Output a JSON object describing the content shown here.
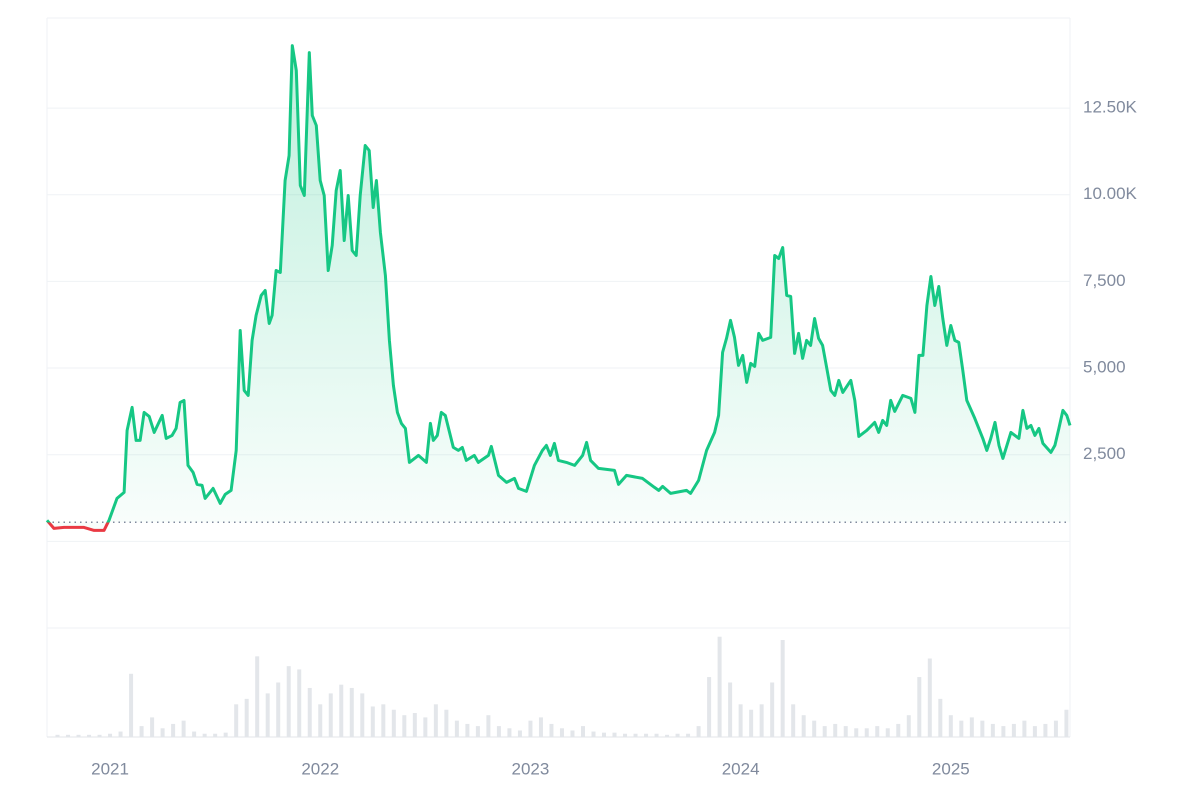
{
  "chart_data": {
    "type": "line",
    "x": [
      2020.7,
      2020.733,
      2020.781,
      2020.876,
      2020.924,
      2020.971,
      2020.995,
      2021.033,
      2021.067,
      2021.081,
      2021.105,
      2021.124,
      2021.143,
      2021.162,
      2021.186,
      2021.21,
      2021.248,
      2021.267,
      2021.295,
      2021.314,
      2021.333,
      2021.352,
      2021.371,
      2021.395,
      2021.414,
      2021.438,
      2021.452,
      2021.49,
      2021.524,
      2021.548,
      2021.576,
      2021.6,
      2021.619,
      2021.638,
      2021.657,
      2021.676,
      2021.695,
      2021.719,
      2021.738,
      2021.757,
      2021.771,
      2021.79,
      2021.81,
      2021.833,
      2021.852,
      2021.867,
      2021.886,
      2021.905,
      2021.924,
      2021.948,
      2021.962,
      2021.981,
      2022.0,
      2022.019,
      2022.038,
      2022.057,
      2022.076,
      2022.095,
      2022.114,
      2022.133,
      2022.152,
      2022.171,
      2022.19,
      2022.214,
      2022.233,
      2022.252,
      2022.267,
      2022.286,
      2022.31,
      2022.329,
      2022.348,
      2022.367,
      2022.386,
      2022.405,
      2022.424,
      2022.467,
      2022.505,
      2022.524,
      2022.538,
      2022.557,
      2022.576,
      2022.595,
      2022.633,
      2022.657,
      2022.676,
      2022.695,
      2022.733,
      2022.752,
      2022.8,
      2022.814,
      2022.848,
      2022.886,
      2022.924,
      2022.943,
      2022.981,
      2023.019,
      2023.057,
      2023.076,
      2023.095,
      2023.114,
      2023.133,
      2023.171,
      2023.21,
      2023.248,
      2023.267,
      2023.286,
      2023.324,
      2023.4,
      2023.419,
      2023.457,
      2023.533,
      2023.59,
      2023.61,
      2023.629,
      2023.667,
      2023.743,
      2023.762,
      2023.8,
      2023.838,
      2023.876,
      2023.895,
      2023.914,
      2023.933,
      2023.952,
      2023.971,
      2023.99,
      2024.01,
      2024.029,
      2024.048,
      2024.067,
      2024.086,
      2024.105,
      2024.143,
      2024.162,
      2024.181,
      2024.2,
      2024.219,
      2024.238,
      2024.257,
      2024.276,
      2024.295,
      2024.314,
      2024.333,
      2024.352,
      2024.371,
      2024.39,
      2024.41,
      2024.429,
      2024.448,
      2024.467,
      2024.486,
      2024.524,
      2024.543,
      2024.562,
      2024.6,
      2024.638,
      2024.657,
      2024.676,
      2024.695,
      2024.714,
      2024.733,
      2024.771,
      2024.81,
      2024.829,
      2024.848,
      2024.867,
      2024.886,
      2024.905,
      2024.924,
      2024.943,
      2024.962,
      2024.981,
      2025.0,
      2025.019,
      2025.038,
      2025.057,
      2025.076,
      2025.114,
      2025.152,
      2025.171,
      2025.19,
      2025.21,
      2025.229,
      2025.248,
      2025.286,
      2025.324,
      2025.343,
      2025.362,
      2025.381,
      2025.4,
      2025.419,
      2025.438,
      2025.476,
      2025.495,
      2025.514,
      2025.533,
      2025.552,
      2025.567
    ],
    "values": [
      606,
      375,
      404,
      404,
      317,
      317,
      606,
      1240,
      1413,
      3201,
      3865,
      2913,
      2913,
      3720,
      3605,
      3144,
      3634,
      2971,
      3057,
      3259,
      4009,
      4066,
      2192,
      1990,
      1644,
      1615,
      1240,
      1529,
      1096,
      1355,
      1471,
      2624,
      6085,
      4355,
      4211,
      5797,
      6518,
      7095,
      7239,
      6287,
      6518,
      7816,
      7758,
      10411,
      11132,
      14305,
      13584,
      10267,
      9979,
      14103,
      12286,
      11997,
      10411,
      9979,
      7816,
      8537,
      10123,
      10700,
      8681,
      9979,
      8392,
      8248,
      9979,
      11421,
      11276,
      9633,
      10411,
      8912,
      7671,
      5797,
      4499,
      3720,
      3403,
      3259,
      2278,
      2480,
      2278,
      3403,
      2913,
      3057,
      3720,
      3634,
      2711,
      2624,
      2711,
      2336,
      2480,
      2278,
      2480,
      2740,
      1903,
      1702,
      1817,
      1529,
      1442,
      2192,
      2624,
      2769,
      2480,
      2826,
      2336,
      2278,
      2192,
      2480,
      2855,
      2336,
      2105,
      2048,
      1644,
      1903,
      1817,
      1557,
      1471,
      1586,
      1384,
      1471,
      1384,
      1759,
      2624,
      3144,
      3634,
      5451,
      5855,
      6374,
      5884,
      5076,
      5364,
      4586,
      5134,
      5047,
      5999,
      5797,
      5884,
      8248,
      8162,
      8479,
      7095,
      7066,
      5422,
      5999,
      5278,
      5797,
      5653,
      6431,
      5855,
      5653,
      4989,
      4355,
      4211,
      4643,
      4297,
      4643,
      4066,
      3028,
      3201,
      3432,
      3144,
      3490,
      3345,
      4066,
      3749,
      4211,
      4124,
      3720,
      5364,
      5364,
      6806,
      7643,
      6806,
      7354,
      6431,
      5653,
      6229,
      5797,
      5739,
      4932,
      4066,
      3547,
      2971,
      2624,
      2971,
      3432,
      2769,
      2394,
      3144,
      2971,
      3778,
      3259,
      3345,
      3057,
      3259,
      2826,
      2567,
      2769,
      3259,
      3778,
      3634,
      3345
    ],
    "baseline": 550,
    "up_color": "#16c784",
    "down_color": "#ea3943",
    "xlim": [
      2020.7,
      2025.567
    ],
    "xticks": [
      2021,
      2022,
      2023,
      2024,
      2025
    ],
    "ylim": [
      -2500,
      15100
    ],
    "yticks": [
      {
        "value": 2500,
        "label": "2,500"
      },
      {
        "value": 5000,
        "label": "5,000"
      },
      {
        "value": 7500,
        "label": "7,500"
      },
      {
        "value": 10000,
        "label": "10.00K"
      },
      {
        "value": 12500,
        "label": "12.50K"
      }
    ],
    "grid": true,
    "volume": {
      "color": "#e3e6ea",
      "ylim": [
        0,
        100
      ],
      "x": [
        2020.75,
        2020.8,
        2020.85,
        2020.9,
        2020.95,
        2021.0,
        2021.05,
        2021.1,
        2021.15,
        2021.2,
        2021.25,
        2021.3,
        2021.35,
        2021.4,
        2021.45,
        2021.5,
        2021.55,
        2021.6,
        2021.65,
        2021.7,
        2021.75,
        2021.8,
        2021.85,
        2021.9,
        2021.95,
        2022.0,
        2022.05,
        2022.1,
        2022.15,
        2022.2,
        2022.25,
        2022.3,
        2022.35,
        2022.4,
        2022.45,
        2022.5,
        2022.55,
        2022.6,
        2022.65,
        2022.7,
        2022.75,
        2022.8,
        2022.85,
        2022.9,
        2022.95,
        2023.0,
        2023.05,
        2023.1,
        2023.15,
        2023.2,
        2023.25,
        2023.3,
        2023.35,
        2023.4,
        2023.45,
        2023.5,
        2023.55,
        2023.6,
        2023.65,
        2023.7,
        2023.75,
        2023.8,
        2023.85,
        2023.9,
        2023.95,
        2024.0,
        2024.05,
        2024.1,
        2024.15,
        2024.2,
        2024.25,
        2024.3,
        2024.35,
        2024.4,
        2024.45,
        2024.5,
        2024.55,
        2024.6,
        2024.65,
        2024.7,
        2024.75,
        2024.8,
        2024.85,
        2024.9,
        2024.95,
        2025.0,
        2025.05,
        2025.1,
        2025.15,
        2025.2,
        2025.25,
        2025.3,
        2025.35,
        2025.4,
        2025.45,
        2025.5,
        2025.55
      ],
      "values": [
        2,
        2,
        2,
        2,
        2,
        3,
        5,
        58,
        10,
        18,
        8,
        12,
        15,
        5,
        3,
        3,
        4,
        30,
        35,
        74,
        40,
        50,
        65,
        62,
        45,
        30,
        40,
        48,
        45,
        40,
        28,
        30,
        25,
        20,
        22,
        18,
        30,
        25,
        15,
        12,
        10,
        20,
        10,
        8,
        6,
        15,
        18,
        12,
        8,
        6,
        10,
        5,
        4,
        4,
        3,
        3,
        3,
        3,
        2,
        3,
        3,
        10,
        55,
        92,
        50,
        30,
        25,
        30,
        50,
        89,
        30,
        20,
        15,
        10,
        12,
        10,
        8,
        8,
        10,
        8,
        12,
        20,
        55,
        72,
        35,
        20,
        15,
        18,
        15,
        12,
        10,
        12,
        15,
        10,
        12,
        15,
        25
      ]
    }
  }
}
